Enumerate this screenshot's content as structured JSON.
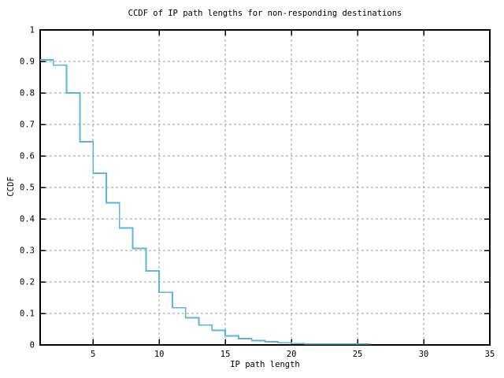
{
  "chart": {
    "title": "CCDF of IP path lengths for non-responding destinations",
    "xlabel": "IP path length",
    "ylabel": "CCDF"
  },
  "chart_data": {
    "type": "line",
    "line_style": "steps",
    "title": "CCDF of IP path lengths for non-responding destinations",
    "xlabel": "IP path length",
    "ylabel": "CCDF",
    "grid": true,
    "legend": "none",
    "line_color": "#5bb5e2",
    "grid_color": "#9c9c9c",
    "axis_color": "#000000",
    "background_color": "#ffffff",
    "xlim": [
      1,
      35
    ],
    "ylim": [
      0,
      1
    ],
    "x_ticks": [
      5,
      10,
      15,
      20,
      25,
      30,
      35
    ],
    "x_tick_labels": [
      "5",
      "10",
      "15",
      "20",
      "25",
      "30",
      "35"
    ],
    "y_ticks": [
      0,
      0.1,
      0.2,
      0.3,
      0.4,
      0.5,
      0.6,
      0.7,
      0.8,
      0.9,
      1
    ],
    "y_tick_labels": [
      "0",
      "0.1",
      "0.2",
      "0.3",
      "0.4",
      "0.5",
      "0.6",
      "0.7",
      "0.8",
      "0.9",
      "1"
    ],
    "series": [
      {
        "name": "CCDF of IP path length for non-responding destinations",
        "style": "steps",
        "points": [
          [
            1,
            0.905
          ],
          [
            2,
            0.888
          ],
          [
            3,
            0.8
          ],
          [
            4,
            0.645
          ],
          [
            5,
            0.545
          ],
          [
            6,
            0.451
          ],
          [
            7,
            0.371
          ],
          [
            8,
            0.306
          ],
          [
            9,
            0.235
          ],
          [
            10,
            0.167
          ],
          [
            11,
            0.118
          ],
          [
            12,
            0.086
          ],
          [
            13,
            0.063
          ],
          [
            14,
            0.046
          ],
          [
            15,
            0.029
          ],
          [
            16,
            0.02
          ],
          [
            17,
            0.014
          ],
          [
            18,
            0.01
          ],
          [
            19,
            0.007
          ],
          [
            20,
            0.0045
          ],
          [
            21,
            0.003
          ],
          [
            26,
            0.003
          ]
        ]
      }
    ]
  }
}
